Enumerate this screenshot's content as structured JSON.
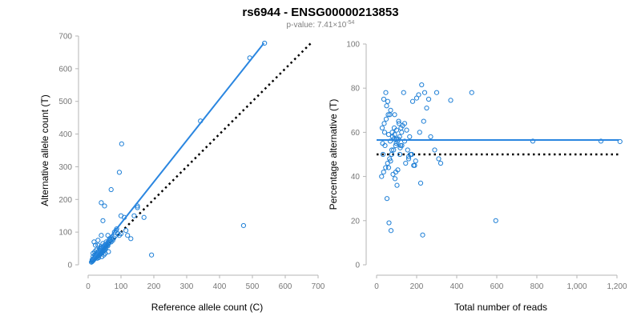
{
  "header": {
    "title": "rs6944 - ENSG00000213853",
    "pvalue_prefix": "p-value: 7.41×10",
    "pvalue_exponent": "-54"
  },
  "colors": {
    "points": "#1e7fd6",
    "fit": "#2a86e0",
    "reference": "#000000"
  },
  "chart_data": [
    {
      "type": "scatter",
      "xlabel": "Reference allele count (C)",
      "ylabel": "Alternative allele count (T)",
      "xlim": [
        0,
        700
      ],
      "ylim": [
        0,
        700
      ],
      "xticks": [
        0,
        100,
        200,
        300,
        400,
        500,
        600,
        700
      ],
      "yticks": [
        0,
        100,
        200,
        300,
        400,
        500,
        600,
        700
      ],
      "xtick_labels": [
        "0",
        "100",
        "200",
        "300",
        "400",
        "500",
        "600",
        "700"
      ],
      "ytick_labels": [
        "0",
        "100",
        "200",
        "300",
        "400",
        "500",
        "600",
        "700"
      ],
      "fit_line": {
        "x": [
          10,
          535
        ],
        "y": [
          13,
          678
        ]
      },
      "reference_line": {
        "x": [
          10,
          678
        ],
        "y": [
          10,
          678
        ]
      },
      "x": [
        537,
        492,
        342,
        102,
        95,
        473,
        193,
        70,
        40,
        50,
        45,
        40,
        60,
        150,
        150,
        110,
        170,
        100,
        87,
        85,
        80,
        120,
        65,
        55,
        45,
        30,
        35,
        25,
        20,
        15,
        15,
        20,
        25,
        30,
        35,
        40,
        45,
        50,
        55,
        60,
        12,
        18,
        22,
        28,
        32,
        38,
        42,
        48,
        52,
        58,
        62,
        70,
        75,
        90,
        130,
        14,
        16,
        24,
        26,
        34,
        36,
        44,
        46,
        54,
        56,
        64,
        66,
        68,
        72,
        78,
        82,
        95,
        100,
        115,
        140,
        18,
        22,
        30,
        38,
        28,
        32,
        42,
        48,
        52,
        62,
        10,
        12,
        13,
        16,
        17,
        19,
        21,
        23,
        27,
        29,
        31,
        33,
        37,
        39,
        41,
        43,
        47,
        49,
        51,
        53
      ],
      "y": [
        678,
        633,
        440,
        370,
        283,
        120,
        30,
        230,
        190,
        180,
        135,
        90,
        90,
        180,
        175,
        145,
        145,
        150,
        110,
        105,
        100,
        90,
        80,
        70,
        65,
        60,
        50,
        45,
        40,
        35,
        25,
        30,
        35,
        40,
        45,
        50,
        55,
        60,
        62,
        58,
        15,
        20,
        25,
        30,
        35,
        40,
        45,
        50,
        55,
        60,
        65,
        70,
        75,
        95,
        80,
        12,
        18,
        28,
        32,
        38,
        42,
        48,
        52,
        58,
        62,
        68,
        72,
        75,
        78,
        82,
        88,
        90,
        95,
        105,
        150,
        70,
        60,
        75,
        55,
        20,
        22,
        25,
        30,
        35,
        40,
        8,
        10,
        12,
        14,
        16,
        18,
        20,
        22,
        24,
        26,
        28,
        30,
        32,
        34,
        36,
        38,
        42,
        44,
        46,
        48
      ]
    },
    {
      "type": "scatter",
      "xlabel": "Total number of reads",
      "ylabel": "Percentage alternative (T)",
      "xlim": [
        0,
        1200
      ],
      "ylim": [
        0,
        100
      ],
      "xticks": [
        0,
        200,
        400,
        600,
        800,
        1000,
        1200
      ],
      "yticks": [
        0,
        20,
        40,
        60,
        80,
        100
      ],
      "xtick_labels": [
        "0",
        "200",
        "400",
        "600",
        "800",
        "1,000",
        "1,200"
      ],
      "ytick_labels": [
        "0",
        "20",
        "40",
        "60",
        "80",
        "100"
      ],
      "fit_line": {
        "x": [
          0,
          1210
        ],
        "y": [
          56.5,
          56.5
        ]
      },
      "reference_line": {
        "x": [
          0,
          1210
        ],
        "y": [
          50,
          50
        ]
      },
      "x": [
        1215,
        1120,
        780,
        595,
        475,
        370,
        300,
        225,
        220,
        230,
        180,
        200,
        210,
        160,
        140,
        120,
        100,
        80,
        60,
        40,
        30,
        50,
        70,
        90,
        110,
        130,
        150,
        170,
        190,
        25,
        35,
        45,
        55,
        65,
        75,
        85,
        95,
        105,
        115,
        125,
        28,
        38,
        48,
        58,
        68,
        78,
        88,
        98,
        108,
        118,
        135,
        145,
        155,
        165,
        175,
        185,
        195,
        215,
        235,
        250,
        270,
        290,
        310,
        320,
        260,
        240,
        32,
        42,
        52,
        62,
        72,
        82,
        92,
        102,
        112,
        122,
        36,
        46,
        56,
        66,
        76,
        86,
        96,
        106,
        116,
        126,
        60,
        70,
        90,
        100,
        140,
        160
      ],
      "y": [
        55.8,
        56,
        56,
        20,
        78,
        74.5,
        78,
        81.5,
        37,
        13.5,
        74,
        75.5,
        77,
        48,
        56,
        54,
        57,
        58,
        59,
        60,
        55,
        72,
        70,
        68,
        65,
        63,
        61,
        50,
        45,
        40,
        42,
        44,
        46,
        48,
        50,
        52,
        54,
        56,
        58,
        60,
        62,
        64,
        66,
        68,
        56,
        60,
        62,
        55,
        57,
        53,
        78,
        46,
        52,
        58,
        50,
        45,
        47,
        60,
        65,
        71,
        58,
        52,
        48,
        46,
        75,
        78,
        50,
        54,
        30,
        19,
        15.5,
        41,
        39,
        36,
        64,
        62,
        75,
        78,
        74,
        68,
        52,
        57,
        42,
        43,
        50,
        54,
        44,
        47,
        59,
        61,
        64,
        49
      ]
    }
  ]
}
